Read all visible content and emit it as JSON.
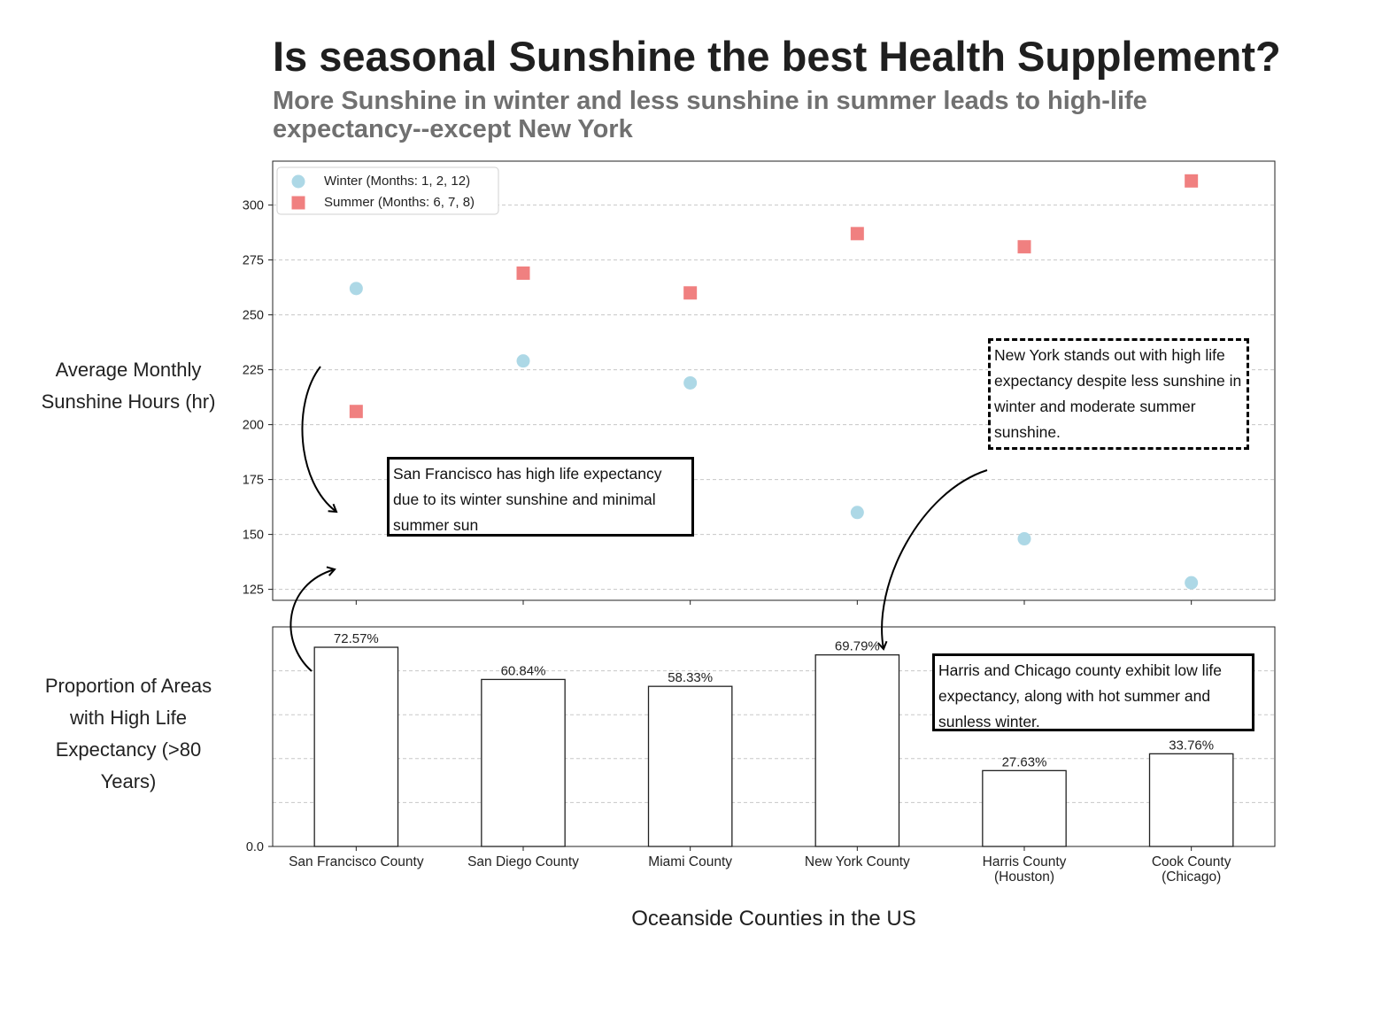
{
  "title": "Is seasonal Sunshine the best Health Supplement?",
  "subtitle": "More Sunshine in winter and less sunshine in summer leads to high-life expectancy--except New York",
  "colors": {
    "winter": "#add8e6",
    "summer": "#f08080",
    "bar_fill": "#ffffff",
    "bar_edge": "#222222"
  },
  "chart_data": [
    {
      "type": "scatter",
      "ylabel": "Average Monthly Sunshine Hours (hr)",
      "categories": [
        "San Francisco County",
        "San Diego County",
        "Miami County",
        "New York County",
        "Harris County (Houston)",
        "Cook County (Chicago)"
      ],
      "series": [
        {
          "name": "Winter (Months: 1, 2, 12)",
          "marker": "circle",
          "values": [
            262,
            229,
            219,
            160,
            148,
            128
          ]
        },
        {
          "name": "Summer (Months: 6, 7, 8)",
          "marker": "square",
          "values": [
            206,
            269,
            260,
            287,
            281,
            311
          ]
        }
      ],
      "ylim": [
        120,
        320
      ],
      "yticks": [
        125,
        150,
        175,
        200,
        225,
        250,
        275,
        300
      ],
      "grid": true,
      "legend": "top-left"
    },
    {
      "type": "bar",
      "ylabel": "Proportion of Areas with High Life Expectancy (>80 Years)",
      "xlabel": "Oceanside Counties in the US",
      "categories": [
        "San Francisco County",
        "San Diego County",
        "Miami County",
        "New York County",
        "Harris County\n(Houston)",
        "Cook County\n(Chicago)"
      ],
      "values": [
        72.57,
        60.84,
        58.33,
        69.79,
        27.63,
        33.76
      ],
      "value_labels": [
        "72.57%",
        "60.84%",
        "58.33%",
        "69.79%",
        "27.63%",
        "33.76%"
      ],
      "ylim": [
        0,
        80
      ],
      "yticks": [
        "0.0"
      ],
      "grid": true
    }
  ],
  "annotations": {
    "san_francisco": "San Francisco has high life expectancy due to its winter sunshine and minimal summer sun",
    "new_york": "New York stands out with high life expectancy despite less sunshine in winter and moderate summer sunshine.",
    "harris_chicago": "Harris and Chicago county exhibit low life expectancy, along with hot summer and sunless winter."
  }
}
